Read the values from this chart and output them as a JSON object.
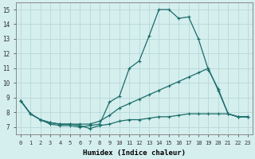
{
  "xlabel": "Humidex (Indice chaleur)",
  "ylabel": "",
  "background_color": "#d5eeee",
  "grid_color": "#b8d8d8",
  "line_color": "#1a6e6a",
  "xlim": [
    -0.5,
    23.5
  ],
  "ylim": [
    6.5,
    15.5
  ],
  "yticks": [
    7,
    8,
    9,
    10,
    11,
    12,
    13,
    14,
    15
  ],
  "xticks": [
    0,
    1,
    2,
    3,
    4,
    5,
    6,
    7,
    8,
    9,
    10,
    11,
    12,
    13,
    14,
    15,
    16,
    17,
    18,
    19,
    20,
    21,
    22,
    23
  ],
  "series": [
    {
      "x": [
        0,
        1,
        2,
        3,
        4,
        5,
        6,
        7,
        8,
        9,
        10,
        11,
        12,
        13,
        14,
        15,
        16,
        17,
        18,
        19,
        20,
        21,
        22,
        23
      ],
      "y": [
        8.8,
        7.9,
        7.5,
        7.2,
        7.1,
        7.1,
        7.0,
        7.1,
        7.2,
        8.7,
        9.1,
        11.0,
        11.5,
        13.2,
        15.0,
        15.0,
        14.4,
        14.5,
        13.0,
        10.9,
        9.6,
        7.9,
        7.7,
        7.7
      ]
    },
    {
      "x": [
        0,
        1,
        2,
        3,
        4,
        5,
        6,
        7,
        8,
        9,
        10,
        11,
        12,
        13,
        14,
        15,
        16,
        17,
        18,
        19,
        20,
        21,
        22,
        23
      ],
      "y": [
        8.8,
        7.9,
        7.5,
        7.3,
        7.2,
        7.2,
        7.2,
        7.2,
        7.4,
        7.8,
        8.3,
        8.6,
        8.9,
        9.2,
        9.5,
        9.8,
        10.1,
        10.4,
        10.7,
        11.0,
        9.5,
        7.9,
        7.7,
        7.7
      ]
    },
    {
      "x": [
        0,
        1,
        2,
        3,
        4,
        5,
        6,
        7,
        8,
        9,
        10,
        11,
        12,
        13,
        14,
        15,
        16,
        17,
        18,
        19,
        20,
        21,
        22,
        23
      ],
      "y": [
        8.8,
        7.9,
        7.5,
        7.3,
        7.2,
        7.2,
        7.1,
        6.9,
        7.1,
        7.2,
        7.4,
        7.5,
        7.5,
        7.6,
        7.7,
        7.7,
        7.8,
        7.9,
        7.9,
        7.9,
        7.9,
        7.9,
        7.7,
        7.7
      ]
    }
  ]
}
